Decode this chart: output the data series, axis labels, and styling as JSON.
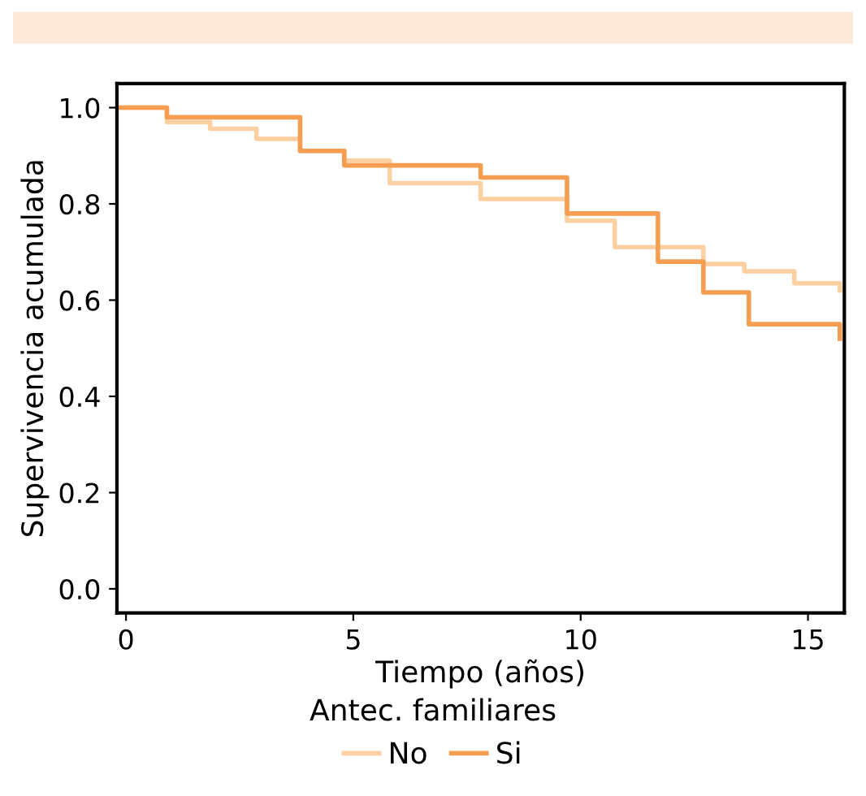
{
  "chart_data": {
    "type": "step",
    "xlabel": "Tiempo (años)",
    "ylabel": "Supervivencia acumulada",
    "legend_title": "Antec. familiares",
    "legend": "bottom",
    "grid": false,
    "line_style": "solid",
    "marker": "none",
    "xlim": [
      -0.2,
      15.8
    ],
    "ylim": [
      -0.05,
      1.05
    ],
    "xticks": [
      0,
      5,
      10,
      15
    ],
    "yticks": [
      {
        "value": 0,
        "label": "0.0"
      },
      {
        "value": 0.2,
        "label": "0.2"
      },
      {
        "value": 0.4,
        "label": "0.4"
      },
      {
        "value": 0.6,
        "label": "0.6"
      },
      {
        "value": 0.8,
        "label": "0.8"
      },
      {
        "value": 1,
        "label": "1.0"
      }
    ],
    "series": [
      {
        "name": "No",
        "color": "#fdd0a2",
        "x": [
          -0.2,
          0.9,
          1.85,
          2.87,
          3.83,
          4.8,
          5.8,
          7.8,
          9.7,
          10.75,
          12.7,
          13.6,
          14.7,
          15.7
        ],
        "values": [
          1.0,
          0.97,
          0.956,
          0.935,
          0.91,
          0.89,
          0.843,
          0.81,
          0.765,
          0.71,
          0.675,
          0.66,
          0.635,
          0.62
        ]
      },
      {
        "name": "Si",
        "color": "#f59d50",
        "x": [
          -0.2,
          0.9,
          3.83,
          4.8,
          7.8,
          9.7,
          11.7,
          12.7,
          13.7,
          15.7
        ],
        "values": [
          1.0,
          0.98,
          0.91,
          0.88,
          0.855,
          0.78,
          0.68,
          0.616,
          0.55,
          0.52
        ]
      }
    ]
  }
}
